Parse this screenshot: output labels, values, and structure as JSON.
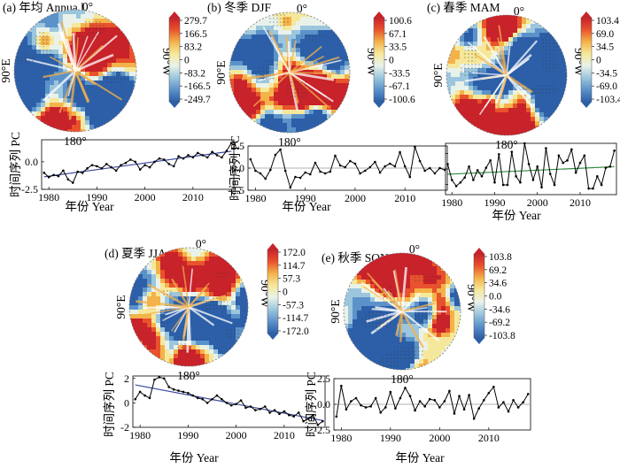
{
  "figure": {
    "panel_texts": {
      "a": {
        "polar_top": "0°",
        "polar_left": "90°E",
        "polar_right": "90°W",
        "polar_bottom": "180°",
        "ts_ylabel": "时间序列 PC",
        "ts_xlabel": "年份 Year"
      },
      "b": {
        "polar_top": "0°",
        "polar_left": "90°E",
        "polar_right": "90°W",
        "polar_bottom": "180°",
        "ts_ylabel": "时间序列 PC",
        "ts_xlabel": "年份 Year"
      },
      "c": {
        "polar_top": "0°",
        "polar_left": "90°E",
        "polar_right": "90°W",
        "polar_bottom": "180°",
        "ts_ylabel": "",
        "ts_xlabel": "年份 Year"
      },
      "d": {
        "polar_top": "0°",
        "polar_left": "90°E",
        "polar_right": "90°W",
        "polar_bottom": "180°",
        "ts_ylabel": "时间序列 PC",
        "ts_xlabel": "年份 Year"
      },
      "e": {
        "polar_top": "0°",
        "polar_left": "90°E",
        "polar_right": "90°W",
        "polar_bottom": "180°",
        "ts_ylabel": "时间序列 PC",
        "ts_xlabel": "年份 Year"
      }
    },
    "colors": {
      "colorbar": [
        "#2c5fa8",
        "#5b92c9",
        "#9cc6dd",
        "#e9f2ea",
        "#f6e89a",
        "#f4b24a",
        "#e8522c",
        "#c8222a"
      ],
      "series_line": "#000000",
      "trend_blue": "#3a49a0",
      "trend_green": "#2e8b3c",
      "zero_line": "#999999"
    }
  },
  "chart_data": [
    {
      "panel": "a",
      "title": "(a) 年均 Annua l",
      "type": "polar-map+line",
      "colorbar_ticks": [
        "279.7",
        "166.5",
        "83.2",
        "0",
        "-83.2",
        "-166.5",
        "-249.7"
      ],
      "x": [
        1979,
        1980,
        1981,
        1982,
        1983,
        1984,
        1985,
        1986,
        1987,
        1988,
        1989,
        1990,
        1991,
        1992,
        1993,
        1994,
        1995,
        1996,
        1997,
        1998,
        1999,
        2000,
        2001,
        2002,
        2003,
        2004,
        2005,
        2006,
        2007,
        2008,
        2009,
        2010,
        2011,
        2012,
        2013,
        2014,
        2015,
        2016,
        2017,
        2018
      ],
      "series": [
        {
          "values": [
            -1.0,
            -1.4,
            -1.2,
            -1.3,
            -0.8,
            -1.6,
            -1.9,
            -0.9,
            -1.0,
            -0.6,
            -0.3,
            -0.4,
            -0.6,
            -0.2,
            -0.5,
            -0.8,
            -0.3,
            -0.1,
            0.2,
            0.0,
            -0.7,
            -0.3,
            -0.5,
            0.0,
            0.3,
            0.2,
            -0.2,
            -0.4,
            0.5,
            0.3,
            0.6,
            0.4,
            0.8,
            0.6,
            0.4,
            0.9,
            0.6,
            0.4,
            1.0,
            1.7
          ]
        }
      ],
      "trend": {
        "type": "linear",
        "color": "blue"
      },
      "ylim": [
        -2.5,
        2.0
      ],
      "yticks": [
        "0.0",
        "-2.5"
      ],
      "xticks": [
        "1980",
        "1990",
        "2000",
        "2010"
      ]
    },
    {
      "panel": "b",
      "title": "(b) 冬季 DJF",
      "type": "polar-map+line",
      "colorbar_ticks": [
        "100.6",
        "67.1",
        "33.5",
        "0",
        "-33.5",
        "-67.1",
        "-100.6"
      ],
      "x": [
        1979,
        1980,
        1981,
        1982,
        1983,
        1984,
        1985,
        1986,
        1987,
        1988,
        1989,
        1990,
        1991,
        1992,
        1993,
        1994,
        1995,
        1996,
        1997,
        1998,
        1999,
        2000,
        2001,
        2002,
        2003,
        2004,
        2005,
        2006,
        2007,
        2008,
        2009,
        2010,
        2011,
        2012,
        2013,
        2014,
        2015,
        2016,
        2017,
        2018
      ],
      "series": [
        {
          "values": [
            1.0,
            -0.3,
            -0.6,
            -1.2,
            -0.2,
            1.5,
            2.1,
            -0.3,
            -2.2,
            -1.0,
            -1.1,
            -0.5,
            -0.7,
            0.6,
            -0.4,
            -0.6,
            -0.4,
            1.4,
            0.3,
            0.1,
            0.8,
            0.5,
            -0.6,
            -0.3,
            0.1,
            0.7,
            -0.5,
            0.2,
            0.5,
            0.2,
            1.8,
            0.2,
            -1.0,
            2.4,
            0.8,
            -0.3,
            0.0,
            -0.6,
            0.0,
            -0.2
          ]
        }
      ],
      "zero_line": true,
      "ylim": [
        -2.5,
        2.5
      ],
      "yticks": [
        "2.5",
        "0.0",
        "-2.5"
      ],
      "xticks": [
        "1980",
        "1990",
        "2000",
        "2010"
      ]
    },
    {
      "panel": "c",
      "title": "(c) 春季 MAM",
      "type": "polar-map+line",
      "colorbar_ticks": [
        "103.4",
        "69.0",
        "34.5",
        "0",
        "-34.5",
        "-69.0",
        "-103.4"
      ],
      "x": [
        1979,
        1980,
        1981,
        1982,
        1983,
        1984,
        1985,
        1986,
        1987,
        1988,
        1989,
        1990,
        1991,
        1992,
        1993,
        1994,
        1995,
        1996,
        1997,
        1998,
        1999,
        2000,
        2001,
        2002,
        2003,
        2004,
        2005,
        2006,
        2007,
        2008,
        2009,
        2010,
        2011,
        2012,
        2013,
        2014,
        2015,
        2016,
        2017,
        2018
      ],
      "series": [
        {
          "values": [
            0.5,
            -0.8,
            -1.3,
            -1.0,
            -0.6,
            0.3,
            -0.8,
            0.0,
            -0.5,
            0.2,
            0.8,
            -1.0,
            1.3,
            -1.2,
            -1.2,
            1.5,
            -0.5,
            -1.0,
            2.2,
            0.5,
            -0.8,
            0.3,
            -1.4,
            1.8,
            -0.3,
            -1.2,
            1.2,
            0.6,
            0.8,
            1.7,
            -0.2,
            0.6,
            1.2,
            -1.5,
            -1.5,
            -0.5,
            -1.2,
            0.2,
            0.3,
            1.6
          ]
        }
      ],
      "trend": {
        "type": "linear",
        "color": "green"
      },
      "ylim": [
        -2.0,
        2.2
      ],
      "xticks": [
        "1980",
        "1990",
        "2000",
        "2010"
      ]
    },
    {
      "panel": "d",
      "title": "(d) 夏季 JJA",
      "type": "polar-map+line",
      "colorbar_ticks": [
        "172.0",
        "114.7",
        "57.3",
        "0",
        "-57.3",
        "-114.7",
        "-172.0"
      ],
      "x": [
        1979,
        1980,
        1981,
        1982,
        1983,
        1984,
        1985,
        1986,
        1987,
        1988,
        1989,
        1990,
        1991,
        1992,
        1993,
        1994,
        1995,
        1996,
        1997,
        1998,
        1999,
        2000,
        2001,
        2002,
        2003,
        2004,
        2005,
        2006,
        2007,
        2008,
        2009,
        2010,
        2011,
        2012,
        2013,
        2014,
        2015,
        2016,
        2017,
        2018
      ],
      "series": [
        {
          "values": [
            0.3,
            0.9,
            0.6,
            0.4,
            1.9,
            2.1,
            2.0,
            1.3,
            1.1,
            1.0,
            0.9,
            0.8,
            0.6,
            0.4,
            0.3,
            0.0,
            0.3,
            0.6,
            0.3,
            0.0,
            -0.2,
            -0.1,
            0.2,
            -0.4,
            -0.3,
            -0.6,
            -0.5,
            -0.3,
            -0.8,
            -0.6,
            -0.9,
            -0.7,
            -1.0,
            -1.1,
            -0.8,
            -1.5,
            -1.3,
            -1.0,
            -1.8,
            -1.5
          ]
        }
      ],
      "trend": {
        "type": "linear",
        "color": "blue"
      },
      "ylim": [
        -2.0,
        2.2
      ],
      "yticks": [
        "2",
        "0",
        "-2"
      ],
      "xticks": [
        "1980",
        "1990",
        "2000",
        "2010"
      ]
    },
    {
      "panel": "e",
      "title": "(e) 秋季 SON",
      "type": "polar-map+line",
      "colorbar_ticks": [
        "103.8",
        "69.2",
        "34.6",
        "0.0",
        "-34.6",
        "-69.2",
        "-103.8"
      ],
      "x": [
        1979,
        1980,
        1981,
        1982,
        1983,
        1984,
        1985,
        1986,
        1987,
        1988,
        1989,
        1990,
        1991,
        1992,
        1993,
        1994,
        1995,
        1996,
        1997,
        1998,
        1999,
        2000,
        2001,
        2002,
        2003,
        2004,
        2005,
        2006,
        2007,
        2008,
        2009,
        2010,
        2011,
        2012,
        2013,
        2014,
        2015,
        2016,
        2017,
        2018
      ],
      "series": [
        {
          "values": [
            -1.2,
            1.8,
            -0.5,
            0.3,
            0.6,
            -0.1,
            -0.3,
            -0.2,
            0.6,
            -0.8,
            -0.3,
            1.2,
            -0.4,
            0.6,
            1.6,
            0.8,
            -0.6,
            0.3,
            -0.2,
            0.5,
            0.4,
            -0.3,
            0.3,
            1.3,
            -0.9,
            0.8,
            -0.5,
            0.9,
            -1.4,
            -0.4,
            0.4,
            1.1,
            1.7,
            -0.3,
            0.2,
            -0.7,
            0.4,
            -0.3,
            0.2,
            1.0
          ]
        }
      ],
      "zero_line": true,
      "ylim": [
        -2.5,
        2.5
      ],
      "yticks": [
        "2.5",
        "0.0",
        "-2.5"
      ],
      "xticks": [
        "1980",
        "1990",
        "2000",
        "2010"
      ]
    }
  ]
}
